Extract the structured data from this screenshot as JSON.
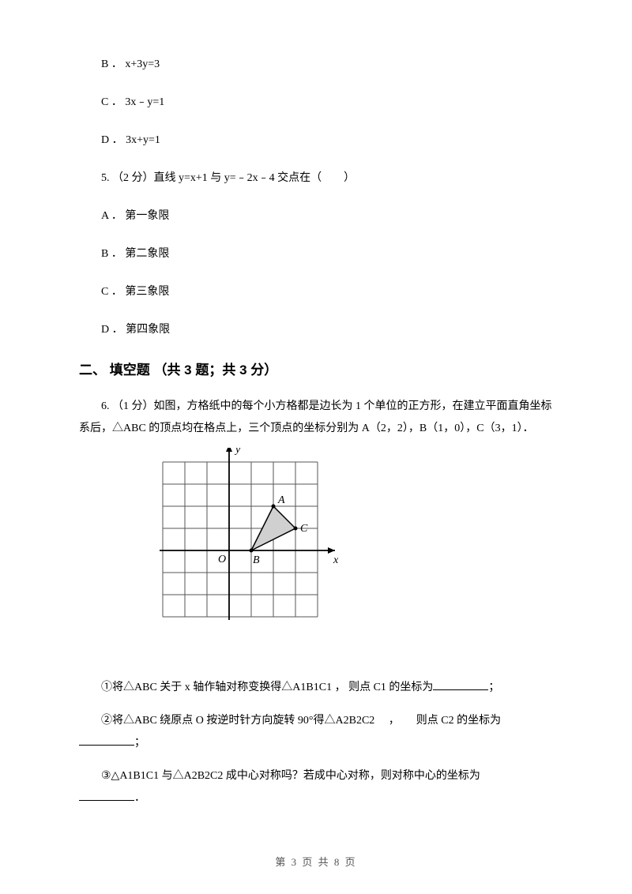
{
  "q4": {
    "B": "B ． x+3y=3",
    "C": "C ． 3x﹣y=1",
    "D": "D ． 3x+y=1"
  },
  "q5": {
    "stem": "5.  （2 分）直线 y=x+1 与 y=﹣2x﹣4 交点在（　　）",
    "A": "A ． 第一象限",
    "B": "B ． 第二象限",
    "C": "C ． 第三象限",
    "D": "D ． 第四象限"
  },
  "section2": {
    "title": "二、 填空题 （共 3 题；共 3 分）"
  },
  "q6": {
    "stem": "6.  （1 分）如图，方格纸中的每个小方格都是边长为 1 个单位的正方形，在建立平面直角坐标系后，△ABC 的顶点均在格点上，三个顶点的坐标分别为 A（2，2），B（1，0），C（3，1）．",
    "points": {
      "A": {
        "x": 2,
        "y": 2,
        "label": "A"
      },
      "B": {
        "x": 1,
        "y": 0,
        "label": "B"
      },
      "C": {
        "x": 3,
        "y": 1,
        "label": "C"
      },
      "O": {
        "label": "O"
      }
    },
    "axis": {
      "x_label": "x",
      "y_label": "y"
    },
    "grid": {
      "x_min": -3,
      "x_max": 4,
      "y_min": -3,
      "y_max": 4,
      "cell": 28,
      "grid_color": "#555555",
      "axis_color": "#000000",
      "triangle_fill": "#d0d0d0",
      "triangle_stroke": "#000000",
      "background": "#ffffff"
    },
    "sub1_pre": "①将△ABC 关于 x 轴作轴对称变换得△A1B1C1 ， 则点 C1 的坐标为",
    "sub1_post": "；",
    "sub2_pre": "②将△ABC 绕原点 O 按逆时针方向旋转 90°得△A2B2C2  　，　　则点 C2 的坐标为",
    "sub2_post": "；",
    "sub3_pre": "③△A1B1C1 与△A2B2C2 成中心对称吗？若成中心对称，则对称中心的坐标为",
    "sub3_post": "．"
  },
  "footer": {
    "text": "第 3 页 共 8 页"
  }
}
